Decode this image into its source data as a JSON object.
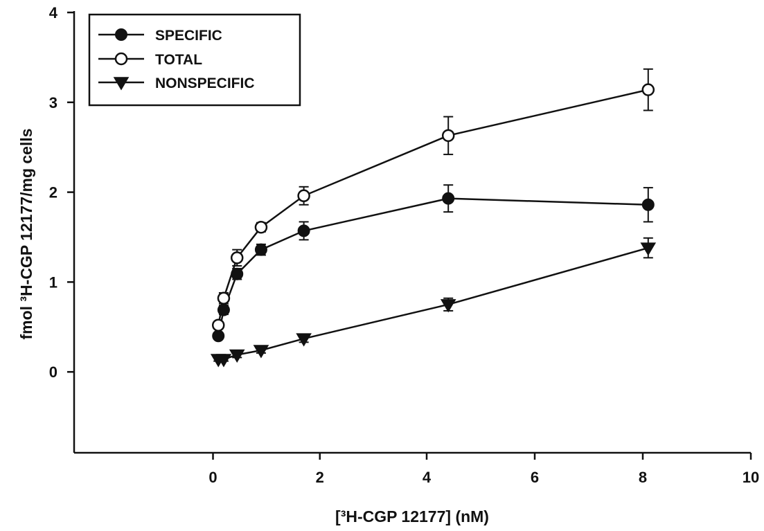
{
  "chart_data": {
    "type": "line",
    "xlabel": "[³H-CGP 12177] (nM)",
    "ylabel": "fmol ³H-CGP 12177/mg cells",
    "xlim": [
      -2.6,
      10
    ],
    "ylim": [
      -0.9,
      4
    ],
    "x_ticks": [
      0,
      2,
      4,
      6,
      8,
      10
    ],
    "y_ticks": [
      0,
      1,
      2,
      3,
      4
    ],
    "x_tick_labels": [
      "0",
      "2",
      "4",
      "6",
      "8",
      "10"
    ],
    "y_tick_labels": [
      "0",
      "1",
      "2",
      "3",
      "4"
    ],
    "x_axis_mapping": "piecewise: 4 nM drawn at the position of 5",
    "legend_position": "top-left",
    "grid": false,
    "series": [
      {
        "name": "SPECIFIC",
        "marker": "filled-circle",
        "x": [
          0.1,
          0.2,
          0.45,
          0.9,
          1.7,
          4.4,
          8.1
        ],
        "y": [
          0.4,
          0.69,
          1.09,
          1.36,
          1.57,
          1.93,
          1.86
        ],
        "err": [
          0.03,
          0.05,
          0.06,
          0.06,
          0.1,
          0.15,
          0.19
        ]
      },
      {
        "name": "TOTAL",
        "marker": "open-circle",
        "x": [
          0.1,
          0.2,
          0.45,
          0.9,
          1.7,
          4.4,
          8.1
        ],
        "y": [
          0.52,
          0.82,
          1.27,
          1.61,
          1.96,
          2.63,
          3.14
        ],
        "err": [
          0.04,
          0.06,
          0.09,
          0.05,
          0.1,
          0.21,
          0.23
        ]
      },
      {
        "name": "NONSPECIFIC",
        "marker": "filled-triangle-down",
        "x": [
          0.1,
          0.2,
          0.45,
          0.9,
          1.7,
          4.4,
          8.1
        ],
        "y": [
          0.14,
          0.14,
          0.19,
          0.24,
          0.37,
          0.75,
          1.38
        ],
        "err": [
          0.02,
          0.02,
          0.03,
          0.03,
          0.04,
          0.07,
          0.11
        ]
      }
    ]
  }
}
